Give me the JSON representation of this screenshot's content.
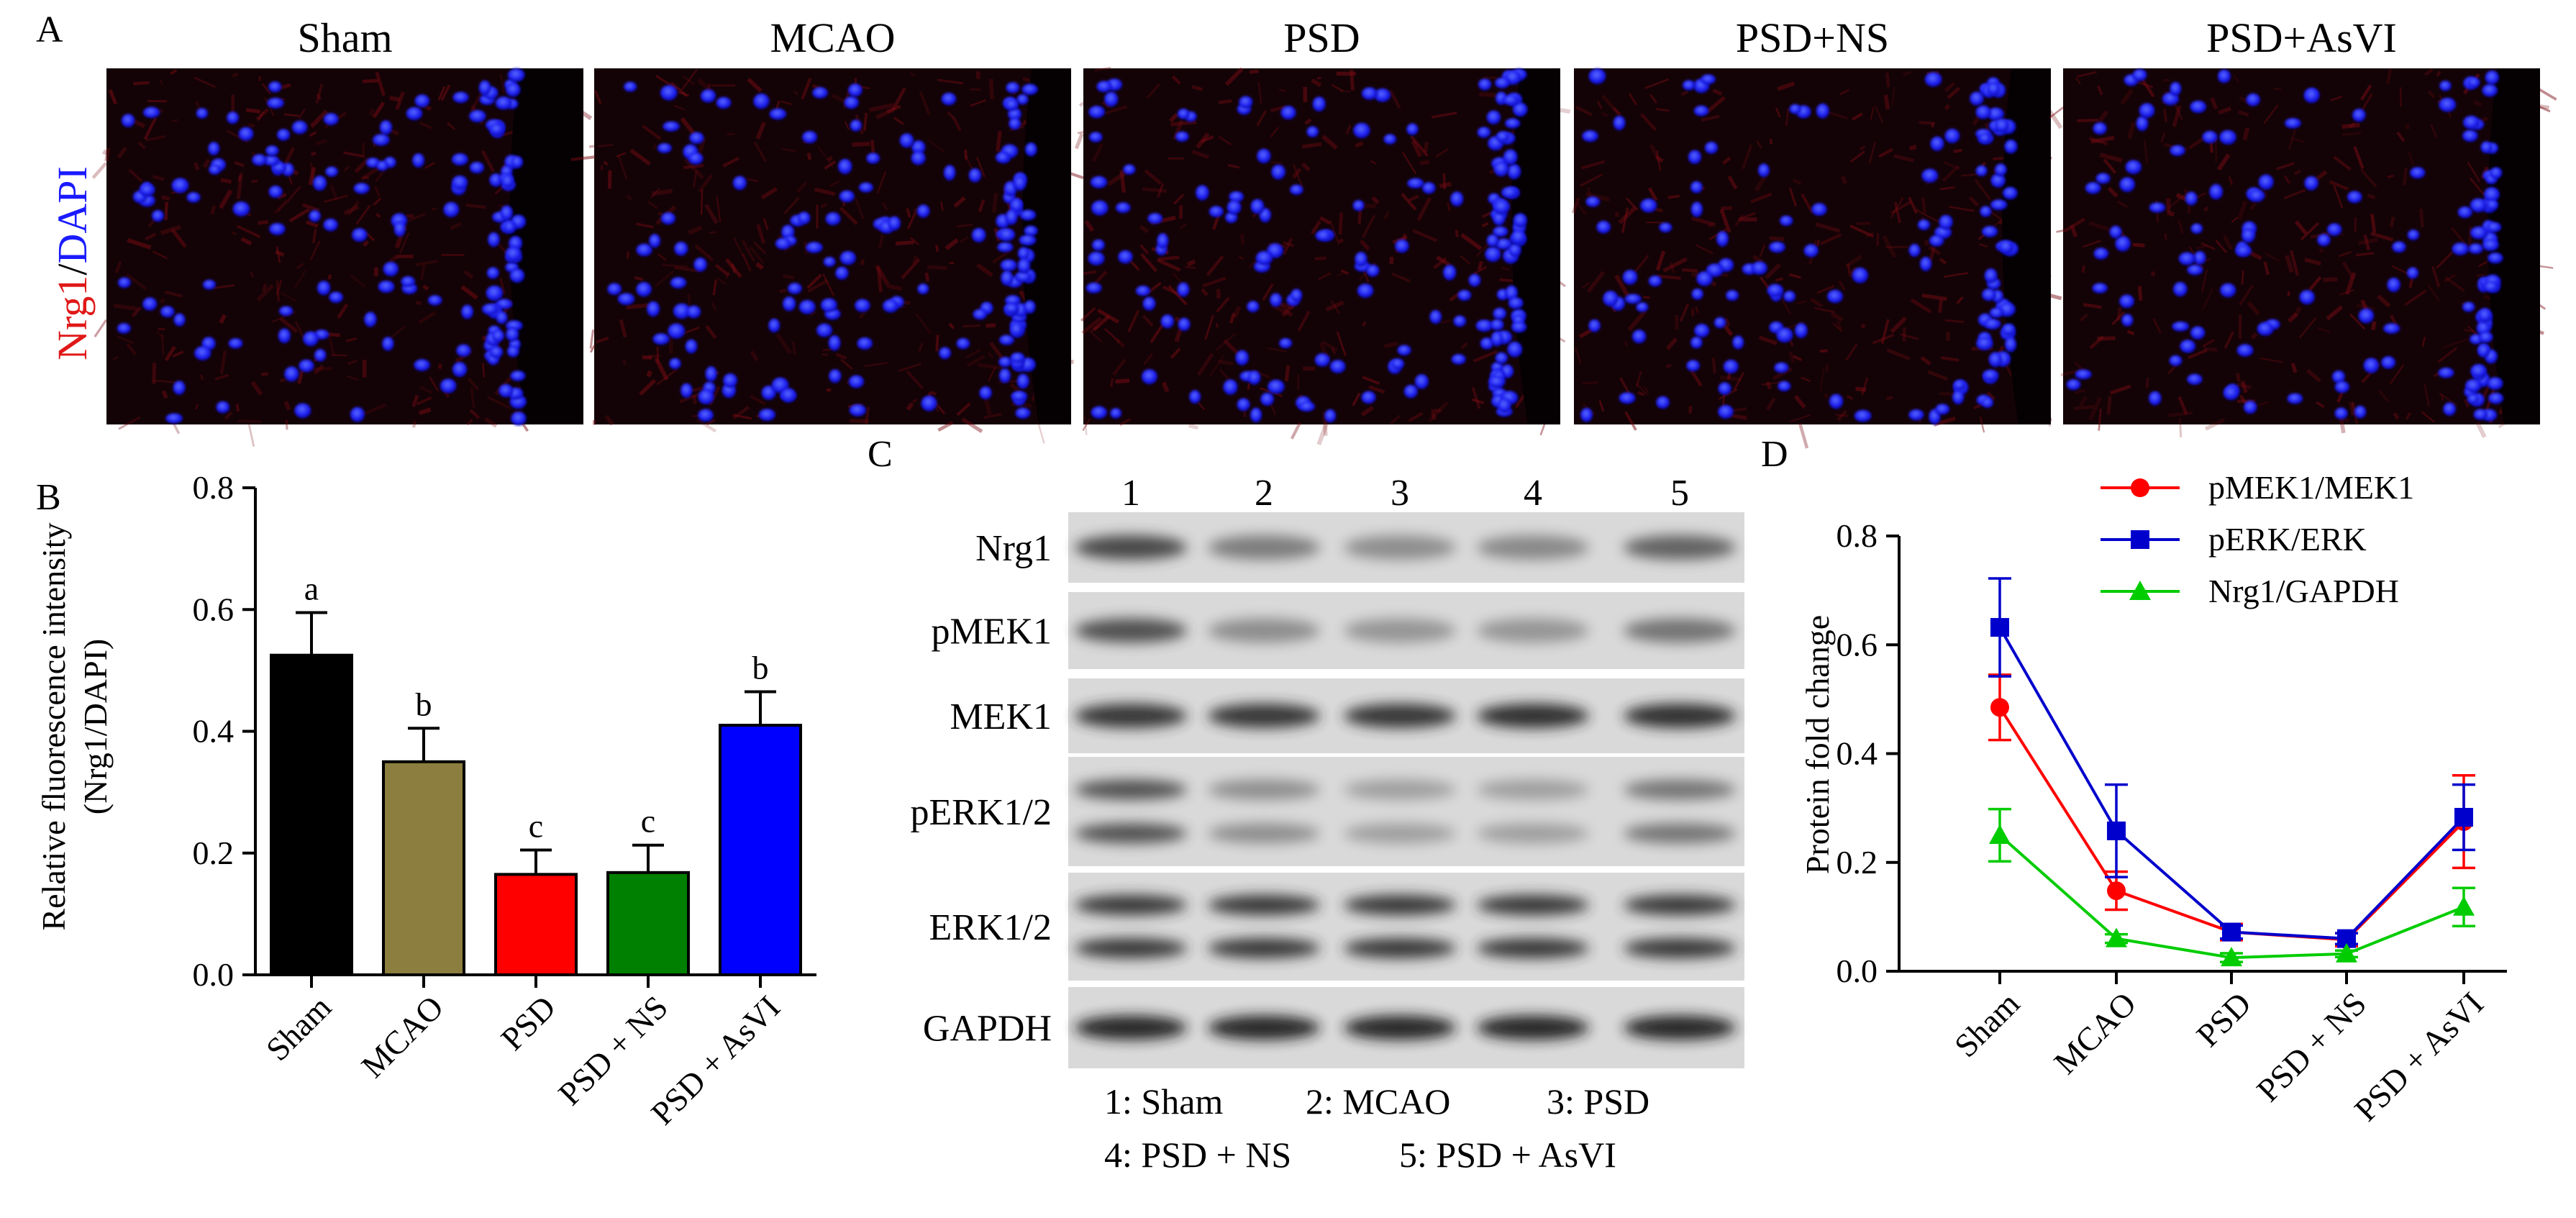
{
  "panel_a": {
    "letter": "A",
    "stain_label_red": "Nrg1",
    "stain_label_sep": "/",
    "stain_label_blue": "DAPI",
    "groups": [
      "Sham",
      "MCAO",
      "PSD",
      "PSD+NS",
      "PSD+AsVI"
    ],
    "colors": {
      "nrg1": "#e01818",
      "dapi": "#1a1aff"
    }
  },
  "panel_b": {
    "letter": "B"
  },
  "panel_c": {
    "letter": "C",
    "lane_numbers": [
      "1",
      "2",
      "3",
      "4",
      "5"
    ],
    "blot_rows": [
      {
        "label": "Nrg1",
        "bands": 1,
        "intensity": [
          0.75,
          0.45,
          0.35,
          0.38,
          0.6
        ]
      },
      {
        "label": "pMEK1",
        "bands": 1,
        "intensity": [
          0.7,
          0.35,
          0.3,
          0.3,
          0.5
        ]
      },
      {
        "label": "MEK1",
        "bands": 1,
        "intensity": [
          0.85,
          0.85,
          0.85,
          0.9,
          0.9
        ]
      },
      {
        "label": "pERK1/2",
        "bands": 2,
        "intensity": [
          0.7,
          0.35,
          0.25,
          0.25,
          0.5
        ]
      },
      {
        "label": "ERK1/2",
        "bands": 2,
        "intensity": [
          0.85,
          0.85,
          0.85,
          0.85,
          0.85
        ]
      },
      {
        "label": "GAPDH",
        "bands": 1,
        "intensity": [
          0.95,
          0.95,
          0.95,
          0.95,
          0.95
        ]
      }
    ],
    "legend_line1": [
      {
        "text": "1: Sham"
      },
      {
        "text": "2: MCAO"
      },
      {
        "text": "3: PSD"
      }
    ],
    "legend_line2": [
      {
        "text": "4: PSD + NS"
      },
      {
        "text": "5: PSD + AsVI"
      }
    ]
  },
  "panel_d": {
    "letter": "D"
  },
  "chart_data": [
    {
      "type": "bar",
      "panel": "B",
      "ylabel_line1": "Relative fluorescence intensity",
      "ylabel_line2": "(Nrg1/DAPI)",
      "ylim": [
        0,
        0.8
      ],
      "yticks": [
        "0.0",
        "0.2",
        "0.4",
        "0.6",
        "0.8"
      ],
      "ytick_values": [
        0,
        0.2,
        0.4,
        0.6,
        0.8
      ],
      "categories": [
        "Sham",
        "MCAO",
        "PSD",
        "PSD + NS",
        "PSD + AsVI"
      ],
      "values": [
        0.525,
        0.35,
        0.165,
        0.168,
        0.41
      ],
      "errors": [
        0.07,
        0.055,
        0.04,
        0.045,
        0.055
      ],
      "letters": [
        "a",
        "b",
        "c",
        "c",
        "b"
      ],
      "colors": [
        "#000000",
        "#8b7e3e",
        "#ff0000",
        "#008000",
        "#0000ff"
      ],
      "grid": false
    },
    {
      "type": "line",
      "panel": "D",
      "ylabel": "Protein fold change",
      "ylim": [
        0,
        0.8
      ],
      "yticks": [
        "0.0",
        "0.2",
        "0.4",
        "0.6",
        "0.8"
      ],
      "ytick_values": [
        0,
        0.2,
        0.4,
        0.6,
        0.8
      ],
      "categories": [
        "Sham",
        "MCAO",
        "PSD",
        "PSD + NS",
        "PSD + AsVI"
      ],
      "legend_position": "top-right",
      "grid": false,
      "series": [
        {
          "name": "pMEK1/MEK1",
          "color": "#ff0000",
          "marker": "circle",
          "values": [
            0.485,
            0.148,
            0.072,
            0.058,
            0.275
          ],
          "errors": [
            0.06,
            0.035,
            0.015,
            0.012,
            0.085
          ]
        },
        {
          "name": "pERK/ERK",
          "color": "#0000cc",
          "marker": "square",
          "values": [
            0.632,
            0.258,
            0.072,
            0.06,
            0.283
          ],
          "errors": [
            0.09,
            0.085,
            0.012,
            0.01,
            0.06
          ]
        },
        {
          "name": "Nrg1/GAPDH",
          "color": "#00cc00",
          "marker": "triangle",
          "values": [
            0.25,
            0.06,
            0.025,
            0.032,
            0.118
          ],
          "errors": [
            0.048,
            0.008,
            0.008,
            0.006,
            0.035
          ]
        }
      ]
    }
  ]
}
